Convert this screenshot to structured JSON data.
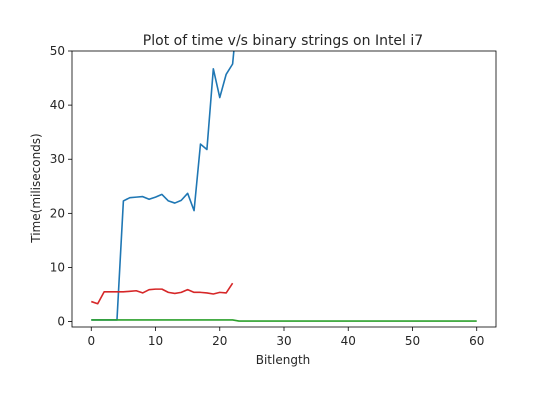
{
  "chart_data": {
    "type": "line",
    "title": "Plot of time v/s binary strings on Intel i7",
    "xlabel": "Bitlength",
    "ylabel": "Time(miliseconds)",
    "xlim": [
      -3,
      63
    ],
    "ylim": [
      -1,
      50
    ],
    "xticks": [
      0,
      10,
      20,
      30,
      40,
      50,
      60
    ],
    "yticks": [
      0,
      10,
      20,
      30,
      40,
      50
    ],
    "grid": false,
    "series": [
      {
        "color": "#1f77b4",
        "x": [
          0,
          1,
          2,
          3,
          4,
          5,
          6,
          7,
          8,
          9,
          10,
          11,
          12,
          13,
          14,
          15,
          16,
          17,
          18,
          19,
          20,
          21,
          22,
          23
        ],
        "y": [
          0.3,
          0.3,
          0.3,
          0.3,
          0.3,
          22.3,
          22.9,
          23.0,
          23.1,
          22.6,
          23.0,
          23.5,
          22.3,
          21.9,
          22.4,
          23.7,
          20.5,
          32.8,
          31.8,
          46.7,
          41.4,
          45.7,
          47.6,
          60
        ]
      },
      {
        "color": "#d62728",
        "x": [
          0,
          1,
          2,
          3,
          4,
          5,
          6,
          7,
          8,
          9,
          10,
          11,
          12,
          13,
          14,
          15,
          16,
          17,
          18,
          19,
          20,
          21,
          22
        ],
        "y": [
          3.7,
          3.3,
          5.5,
          5.5,
          5.5,
          5.5,
          5.6,
          5.7,
          5.3,
          5.9,
          6.0,
          6.0,
          5.4,
          5.2,
          5.4,
          5.9,
          5.4,
          5.4,
          5.3,
          5.1,
          5.4,
          5.3,
          7.1
        ]
      },
      {
        "color": "#2ca02c",
        "x": [
          0,
          5,
          10,
          15,
          20,
          22,
          23,
          30,
          40,
          50,
          60
        ],
        "y": [
          0.3,
          0.3,
          0.3,
          0.3,
          0.3,
          0.3,
          0.1,
          0.1,
          0.1,
          0.1,
          0.1
        ]
      }
    ]
  }
}
